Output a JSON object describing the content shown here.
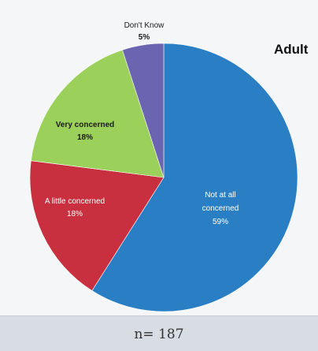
{
  "chart_data": {
    "type": "pie",
    "title": "Adult",
    "slices": [
      {
        "label": "Not at all concerned",
        "value": 59,
        "display": "59%",
        "color": "#2a7fc4"
      },
      {
        "label": "A little concerned",
        "value": 18,
        "display": "18%",
        "color": "#c8303f"
      },
      {
        "label": "Very concerned",
        "value": 18,
        "display": "18%",
        "color": "#9bd05a"
      },
      {
        "label": "Don't Know",
        "value": 5,
        "display": "5%",
        "color": "#6b64b0"
      }
    ]
  },
  "footer": {
    "n_label": "n= 187"
  }
}
